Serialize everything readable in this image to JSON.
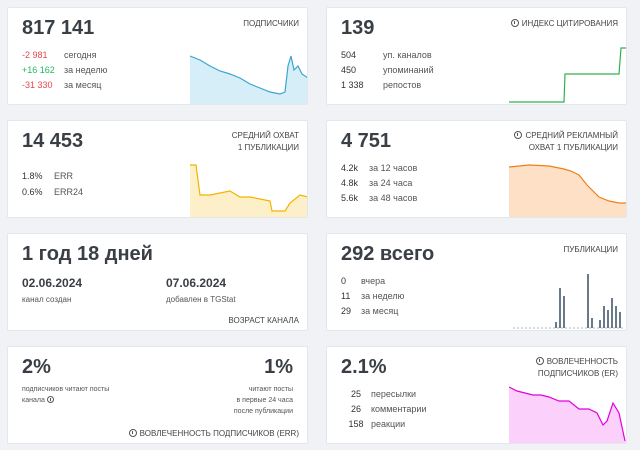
{
  "subscribers": {
    "value": "817 141",
    "label": "ПОДПИСЧИКИ",
    "rows": [
      {
        "v": "-2 981",
        "t": "сегодня"
      },
      {
        "v": "+16 162",
        "t": "за неделю"
      },
      {
        "v": "-31 330",
        "t": "за месяц"
      }
    ]
  },
  "citation": {
    "value": "139",
    "label": "ИНДЕКС ЦИТИРОВАНИЯ",
    "rows": [
      {
        "v": "504",
        "t": "уп. каналов"
      },
      {
        "v": "450",
        "t": "упоминаний"
      },
      {
        "v": "1 338",
        "t": "репостов"
      }
    ]
  },
  "reach": {
    "value": "14 453",
    "label_line1": "СРЕДНИЙ ОХВАТ",
    "label_line2": "1 ПУБЛИКАЦИИ",
    "rows": [
      {
        "v": "1.8%",
        "t": "ERR"
      },
      {
        "v": "0.6%",
        "t": "ERR24"
      }
    ]
  },
  "ad_reach": {
    "value": "4 751",
    "label_line1": "СРЕДНИЙ РЕКЛАМНЫЙ",
    "label_line2": "ОХВАТ 1 ПУБЛИКАЦИИ",
    "rows": [
      {
        "v": "4.2k",
        "t": "за 12 часов"
      },
      {
        "v": "4.8k",
        "t": "за 24 часа"
      },
      {
        "v": "5.6k",
        "t": "за 48 часов"
      }
    ]
  },
  "age": {
    "value": "1 год 18 дней",
    "created_date": "02.06.2024",
    "created_label": "канал создан",
    "added_date": "07.06.2024",
    "added_label": "добавлен в TGStat",
    "label": "ВОЗРАСТ КАНАЛА"
  },
  "posts": {
    "value": "292 всего",
    "label": "ПУБЛИКАЦИИ",
    "rows": [
      {
        "v": "0",
        "t": "вчера"
      },
      {
        "v": "11",
        "t": "за неделю"
      },
      {
        "v": "29",
        "t": "за месяц"
      }
    ]
  },
  "engagement": {
    "left_value": "2%",
    "left_desc_1": "подписчиков читают посты",
    "left_desc_2": "канала",
    "right_value": "1%",
    "right_desc_1": "читают посты",
    "right_desc_2": "в первые 24 часа",
    "right_desc_3": "после публикации",
    "label": "ВОВЛЕЧЕННОСТЬ ПОДПИСЧИКОВ (ERR)"
  },
  "er": {
    "value": "2.1%",
    "label_line1": "ВОВЛЕЧЕННОСТЬ",
    "label_line2": "ПОДПИСЧИКОВ (ER)",
    "rows": [
      {
        "v": "25",
        "t": "пересылки"
      },
      {
        "v": "26",
        "t": "комментарии"
      },
      {
        "v": "158",
        "t": "реакции"
      }
    ]
  },
  "colors": {
    "blue": "#3aa6d0",
    "green": "#2fb24c",
    "yellow": "#f2b400",
    "orange": "#f07f1a",
    "gray": "#6b7a8a",
    "magenta": "#e000e0"
  }
}
